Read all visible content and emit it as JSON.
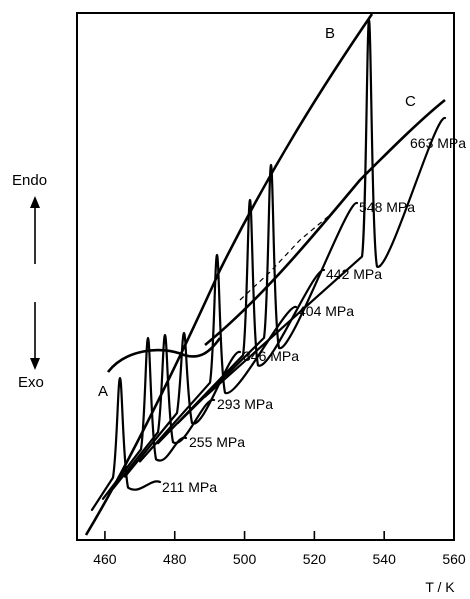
{
  "chart_data": {
    "type": "line",
    "title": "",
    "xlabel": "T / K",
    "ylabel_up": "Endo",
    "ylabel_down": "Exo",
    "xlim": [
      452,
      560
    ],
    "x_ticks": [
      460,
      480,
      500,
      520,
      540,
      560
    ],
    "x_tick_labels": [
      "460",
      "480",
      "500",
      "520",
      "540",
      "560"
    ],
    "grid": false,
    "series": [
      {
        "name": "211 MPa",
        "label": "211 MPa",
        "peak_T": 462.5
      },
      {
        "name": "255 MPa",
        "label": "255 MPa",
        "peak_T": 470.5
      },
      {
        "name": "293 MPa",
        "label": "293 MPa",
        "peak_T": 476.0
      },
      {
        "name": "346 MPa",
        "label": "346 MPa",
        "peak_T": 482.0
      },
      {
        "name": "404 MPa",
        "label": "404 MPa",
        "peak_T": 492.0
      },
      {
        "name": "442 MPa",
        "label": "442 MPa",
        "peak_T": 501.5
      },
      {
        "name": "548 MPa",
        "label": "548 MPa",
        "peak_T": 507.5
      },
      {
        "name": "663 MPa",
        "label": "663 MPa",
        "peak_T": 536.5
      }
    ],
    "envelope_labels": [
      "A",
      "B",
      "C"
    ]
  }
}
